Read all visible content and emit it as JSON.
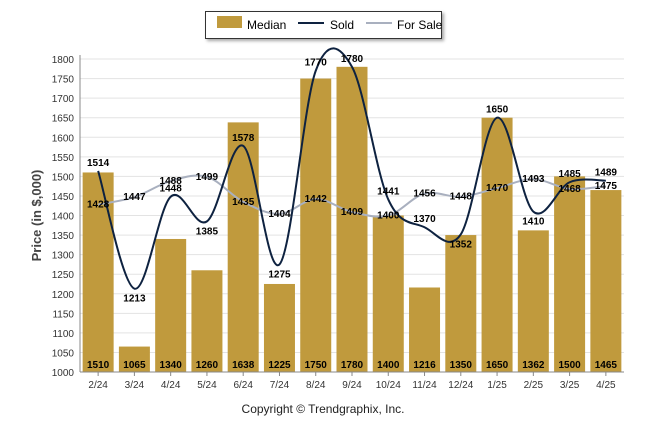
{
  "chart_data": {
    "type": "bar",
    "ylabel": "Price (in $,000)",
    "ylim": [
      1000,
      1800
    ],
    "ytick_step": 50,
    "grid": true,
    "legend_placement": "top-center",
    "categories": [
      "2/24",
      "3/24",
      "4/24",
      "5/24",
      "6/24",
      "7/24",
      "8/24",
      "9/24",
      "10/24",
      "11/24",
      "12/24",
      "1/25",
      "2/25",
      "3/25",
      "4/25"
    ],
    "series": [
      {
        "name": "Median",
        "kind": "bar",
        "color": "#c09a3d",
        "values": [
          1510,
          1065,
          1340,
          1260,
          1638,
          1225,
          1750,
          1780,
          1400,
          1216,
          1350,
          1650,
          1362,
          1500,
          1465
        ]
      },
      {
        "name": "Sold",
        "kind": "line",
        "color": "#0e2240",
        "values": [
          1514,
          1213,
          1448,
          1385,
          1578,
          1275,
          1770,
          1780,
          1441,
          1370,
          1352,
          1650,
          1410,
          1485,
          1489
        ]
      },
      {
        "name": "For Sale",
        "kind": "line",
        "color": "#a9b0bf",
        "values": [
          1428,
          1447,
          1488,
          1499,
          1435,
          1404,
          1442,
          1409,
          1400,
          1456,
          1448,
          1470,
          1493,
          1468,
          1475
        ]
      }
    ],
    "footer": "Copyright © Trendgraphix, Inc."
  }
}
